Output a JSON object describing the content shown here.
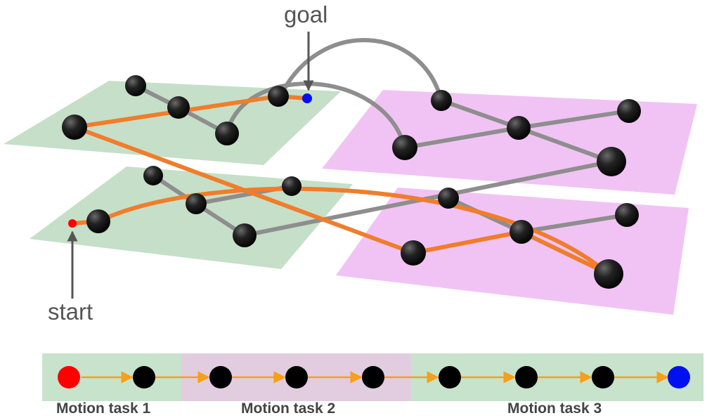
{
  "labels": {
    "goal": "goal",
    "start": "start"
  },
  "tasks": [
    {
      "label": "Motion task 1"
    },
    {
      "label": "Motion task 2"
    },
    {
      "label": "Motion task 3"
    }
  ],
  "colors": {
    "green_plane": "#c6dfc8",
    "pink_plane": "#f1c3f4",
    "strip_green": "#c8e3cb",
    "strip_purple": "#e2cde0",
    "edge_gray": "#8e8e8e",
    "path_orange": "#f07d2b",
    "node": "#111111",
    "start_node": "#ff0000",
    "goal_node": "#0010f0",
    "pointer": "#555555"
  },
  "icons": {
    "start_pointer": "arrow-up",
    "goal_pointer": "arrow-down"
  }
}
